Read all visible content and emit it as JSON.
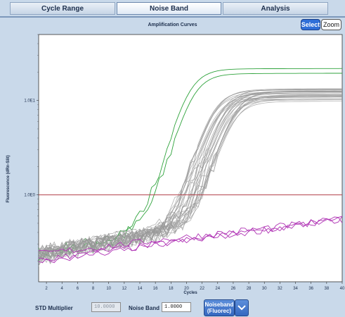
{
  "tabs": [
    {
      "label": "Cycle Range",
      "active": false
    },
    {
      "label": "Noise Band",
      "active": true
    },
    {
      "label": "Analysis",
      "active": false
    }
  ],
  "toolbar": {
    "select_label": "Select",
    "zoom_label": "Zoom"
  },
  "chart_data": {
    "type": "line",
    "title": "Amplification Curves",
    "xlabel": "Cycles",
    "ylabel": "Fluorescence (dRn-Slit)",
    "x_ticks": [
      "2",
      "4",
      "6",
      "8",
      "10",
      "12",
      "14",
      "16",
      "18",
      "20",
      "22",
      "24",
      "26",
      "28",
      "30",
      "32",
      "34",
      "36",
      "38",
      "40"
    ],
    "y_ticks": [
      "1.0E1",
      "1.0E0"
    ],
    "xlim": [
      1,
      40
    ],
    "y_scale": "log",
    "ylim": [
      0.12,
      50
    ],
    "grid": false,
    "threshold": {
      "value": 1.0,
      "color": "#b3404a"
    },
    "series": [
      {
        "color": "#2fa33c",
        "count": 2,
        "ct": 20.3,
        "plateau": 21,
        "baseline": 0.22
      },
      {
        "color": "#9a9a9a",
        "count": 30,
        "ct": 24.5,
        "plateau": 12.5,
        "baseline": 0.22
      },
      {
        "color": "#b035b5",
        "count": 3,
        "ct": null,
        "plateau": null,
        "baseline": 0.22,
        "end_value": 0.55
      }
    ]
  },
  "controls": {
    "std_multiplier_label": "STD Multiplier",
    "std_multiplier_value": "10.0000",
    "noise_band_label": "Noise Band",
    "noise_band_value": "1.0000",
    "noiseband_button_line1": "Noiseband",
    "noiseband_button_line2": "(Fluorec)"
  },
  "colors": {
    "accent": "#2f6fd8",
    "panel_bg": "#c9d9ea"
  }
}
